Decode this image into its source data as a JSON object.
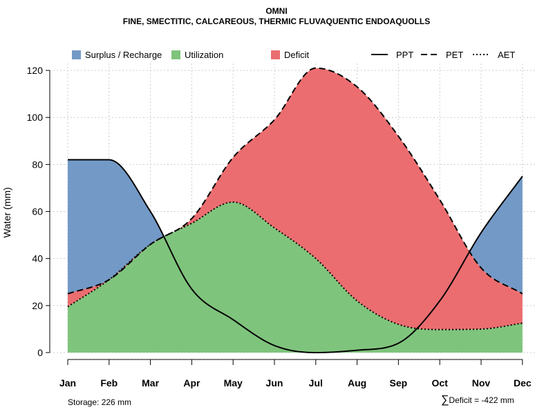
{
  "title": "OMNI",
  "subtitle": "FINE, SMECTITIC, CALCAREOUS, THERMIC FLUVAQUENTIC ENDOAQUOLLS",
  "storage_text": "Storage: 226 mm",
  "deficit_text": "Deficit = -422 mm",
  "deficit_symbol": "∑",
  "colors": {
    "surplus": "#7399c6",
    "utilization": "#7fc47c",
    "deficit": "#eb6d70",
    "line": "#000000",
    "grid": "#cccccc"
  },
  "chart_data": {
    "type": "area",
    "xlabel": "",
    "ylabel": "Water (mm)",
    "ylim": [
      0,
      120
    ],
    "yticks": [
      0,
      20,
      40,
      60,
      80,
      100,
      120
    ],
    "grid": true,
    "legend_position": "top",
    "legend": [
      {
        "label": "Surplus / Recharge",
        "kind": "fill",
        "key": "surplus"
      },
      {
        "label": "Utilization",
        "kind": "fill",
        "key": "utilization"
      },
      {
        "label": "Deficit",
        "kind": "fill",
        "key": "deficit"
      },
      {
        "label": "PPT",
        "kind": "solid"
      },
      {
        "label": "PET",
        "kind": "dashed"
      },
      {
        "label": "AET",
        "kind": "dotted"
      }
    ],
    "categories": [
      "Jan",
      "Feb",
      "Mar",
      "Apr",
      "May",
      "Jun",
      "Jul",
      "Aug",
      "Sep",
      "Oct",
      "Nov",
      "Dec"
    ],
    "series": [
      {
        "name": "PPT",
        "values": [
          82,
          82,
          60,
          27,
          14,
          3,
          0,
          1,
          4,
          22,
          51,
          75
        ]
      },
      {
        "name": "PET",
        "values": [
          25,
          31,
          46,
          57,
          83,
          99,
          121,
          113,
          92,
          65,
          36,
          25
        ]
      },
      {
        "name": "AET",
        "values": [
          19.5,
          31,
          46,
          55,
          64,
          53,
          40,
          22,
          12,
          9.8,
          10,
          12.5
        ]
      }
    ]
  }
}
